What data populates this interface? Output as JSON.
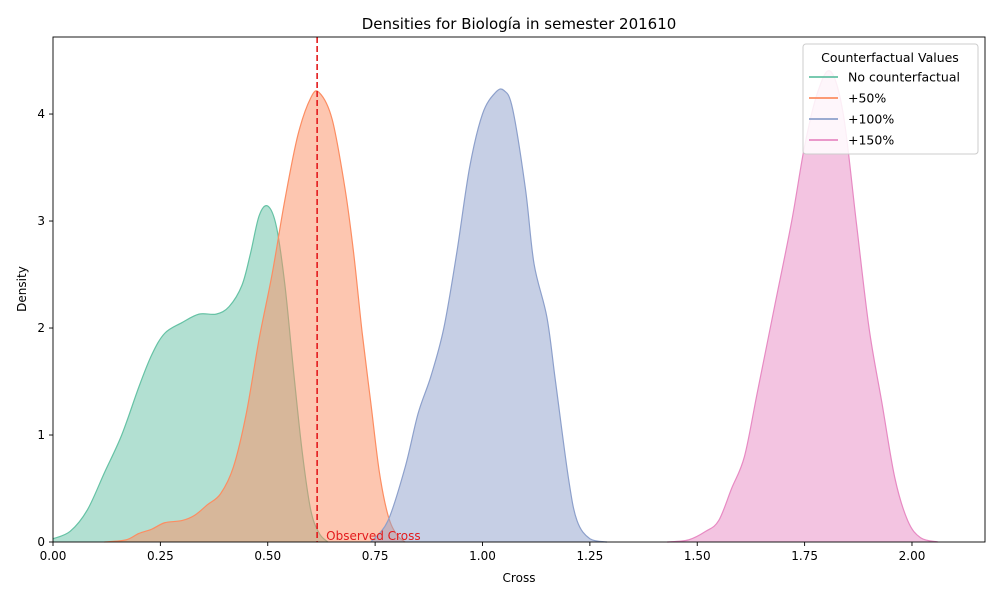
{
  "chart_data": {
    "type": "area",
    "title": "Densities for Biología in semester 201610",
    "xlabel": "Cross",
    "ylabel": "Density",
    "xlim": [
      0,
      2.17
    ],
    "ylim": [
      0,
      4.72
    ],
    "xticks": [
      0,
      0.25,
      0.5,
      0.75,
      1.0,
      1.25,
      1.5,
      1.75,
      2.0
    ],
    "xtick_labels": [
      "0.00",
      "0.25",
      "0.50",
      "0.75",
      "1.00",
      "1.25",
      "1.50",
      "1.75",
      "2.00"
    ],
    "yticks": [
      0,
      1,
      2,
      3,
      4
    ],
    "ytick_labels": [
      "0",
      "1",
      "2",
      "3",
      "4"
    ],
    "grid": false,
    "legend": {
      "title": "Counterfactual Values",
      "placement": "top-right"
    },
    "observed": {
      "x": 0.615,
      "label": "Observed Cross",
      "color": "#e31a1c"
    },
    "series": [
      {
        "name": "No counterfactual",
        "color": "#66c2a5",
        "fill": "#b2e1d2",
        "points": [
          [
            0.0,
            0.03
          ],
          [
            0.04,
            0.1
          ],
          [
            0.08,
            0.3
          ],
          [
            0.12,
            0.65
          ],
          [
            0.16,
            1.0
          ],
          [
            0.2,
            1.45
          ],
          [
            0.23,
            1.75
          ],
          [
            0.26,
            1.95
          ],
          [
            0.3,
            2.05
          ],
          [
            0.34,
            2.13
          ],
          [
            0.38,
            2.13
          ],
          [
            0.41,
            2.2
          ],
          [
            0.44,
            2.4
          ],
          [
            0.46,
            2.7
          ],
          [
            0.48,
            3.05
          ],
          [
            0.5,
            3.14
          ],
          [
            0.52,
            2.95
          ],
          [
            0.54,
            2.4
          ],
          [
            0.56,
            1.6
          ],
          [
            0.58,
            0.85
          ],
          [
            0.6,
            0.3
          ],
          [
            0.62,
            0.08
          ],
          [
            0.64,
            0.0
          ]
        ]
      },
      {
        "name": "+50%",
        "color": "#fc8d62",
        "fill": "#fdc4ae",
        "points": [
          [
            0.12,
            0.0
          ],
          [
            0.17,
            0.02
          ],
          [
            0.2,
            0.08
          ],
          [
            0.23,
            0.12
          ],
          [
            0.26,
            0.18
          ],
          [
            0.3,
            0.2
          ],
          [
            0.33,
            0.25
          ],
          [
            0.36,
            0.35
          ],
          [
            0.39,
            0.45
          ],
          [
            0.42,
            0.7
          ],
          [
            0.45,
            1.2
          ],
          [
            0.48,
            1.9
          ],
          [
            0.51,
            2.5
          ],
          [
            0.54,
            3.2
          ],
          [
            0.57,
            3.8
          ],
          [
            0.6,
            4.15
          ],
          [
            0.62,
            4.2
          ],
          [
            0.65,
            3.95
          ],
          [
            0.68,
            3.3
          ],
          [
            0.7,
            2.7
          ],
          [
            0.72,
            1.95
          ],
          [
            0.74,
            1.3
          ],
          [
            0.76,
            0.65
          ],
          [
            0.78,
            0.25
          ],
          [
            0.8,
            0.07
          ],
          [
            0.82,
            0.0
          ]
        ]
      },
      {
        "name": "+100%",
        "color": "#8da0cb",
        "fill": "#c5cfe4",
        "points": [
          [
            0.74,
            0.0
          ],
          [
            0.78,
            0.2
          ],
          [
            0.82,
            0.7
          ],
          [
            0.85,
            1.2
          ],
          [
            0.88,
            1.55
          ],
          [
            0.91,
            2.0
          ],
          [
            0.94,
            2.7
          ],
          [
            0.97,
            3.5
          ],
          [
            1.0,
            4.0
          ],
          [
            1.03,
            4.2
          ],
          [
            1.05,
            4.22
          ],
          [
            1.07,
            4.05
          ],
          [
            1.1,
            3.3
          ],
          [
            1.12,
            2.6
          ],
          [
            1.15,
            2.1
          ],
          [
            1.17,
            1.5
          ],
          [
            1.2,
            0.6
          ],
          [
            1.22,
            0.2
          ],
          [
            1.25,
            0.03
          ],
          [
            1.29,
            0.0
          ]
        ]
      },
      {
        "name": "+150%",
        "color": "#e78ac3",
        "fill": "#f3c4e1",
        "points": [
          [
            1.43,
            0.0
          ],
          [
            1.48,
            0.02
          ],
          [
            1.52,
            0.1
          ],
          [
            1.55,
            0.2
          ],
          [
            1.58,
            0.5
          ],
          [
            1.61,
            0.8
          ],
          [
            1.64,
            1.4
          ],
          [
            1.68,
            2.2
          ],
          [
            1.72,
            3.0
          ],
          [
            1.75,
            3.7
          ],
          [
            1.78,
            4.2
          ],
          [
            1.81,
            4.4
          ],
          [
            1.84,
            4.0
          ],
          [
            1.87,
            3.0
          ],
          [
            1.9,
            2.0
          ],
          [
            1.93,
            1.3
          ],
          [
            1.96,
            0.6
          ],
          [
            1.99,
            0.2
          ],
          [
            2.02,
            0.04
          ],
          [
            2.06,
            0.0
          ]
        ]
      }
    ]
  }
}
